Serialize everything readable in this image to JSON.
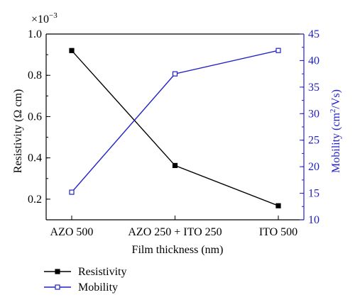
{
  "chart_data": {
    "type": "line",
    "categories": [
      "AZO 500",
      "AZO 250 + ITO 250",
      "ITO 500"
    ],
    "xlabel": "Film thickness (nm)",
    "left_axis": {
      "label": "Resistivity (Ω cm)",
      "exponent_label": "×10",
      "exponent": "−3",
      "range": [
        0.1,
        1.0
      ],
      "ticks": [
        "0.2",
        "0.4",
        "0.6",
        "0.8",
        "1.0"
      ],
      "tick_values": [
        0.2,
        0.4,
        0.6,
        0.8,
        1.0
      ],
      "color": "#000000"
    },
    "right_axis": {
      "label_prefix": "Mobility (cm",
      "label_sup": "2",
      "label_suffix": "/Vs)",
      "range": [
        10,
        45
      ],
      "ticks": [
        "10",
        "15",
        "20",
        "25",
        "30",
        "35",
        "40",
        "45"
      ],
      "tick_values": [
        10,
        15,
        20,
        25,
        30,
        35,
        40,
        45
      ],
      "color": "#2020c8"
    },
    "series": [
      {
        "name": "Resistivity",
        "axis": "left",
        "values": [
          0.92,
          0.363,
          0.168
        ],
        "color": "#000000",
        "marker": "filled-square"
      },
      {
        "name": "Mobility",
        "axis": "right",
        "values": [
          15.2,
          37.5,
          41.9
        ],
        "color": "#2020c8",
        "marker": "open-square"
      }
    ],
    "legend_position": "bottom-left",
    "grid": false
  }
}
